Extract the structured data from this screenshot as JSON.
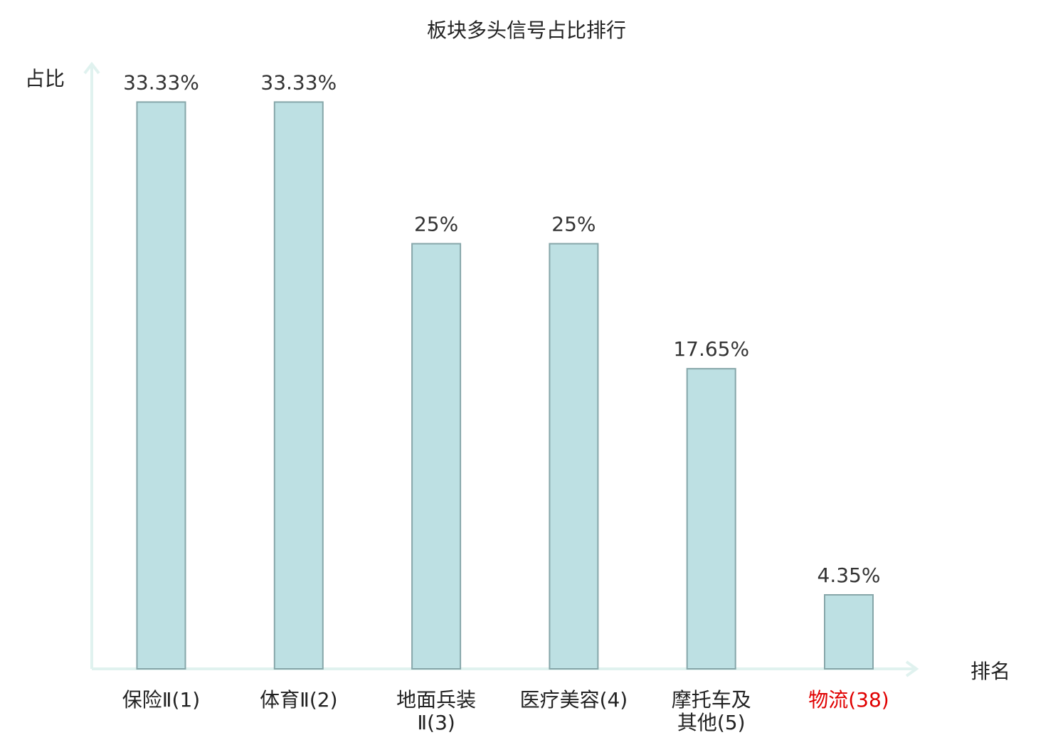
{
  "chart_data": {
    "type": "bar",
    "title": "板块多头信号占比排行",
    "xlabel": "排名",
    "ylabel": "占比",
    "ylim": [
      0,
      35
    ],
    "grid": false,
    "categories": [
      "保险Ⅱ(1)",
      "体育Ⅱ(2)",
      "地面兵装Ⅱ(3)",
      "医疗美容(4)",
      "摩托车及其他(5)",
      "物流(38)"
    ],
    "category_lines": [
      [
        "保险Ⅱ(1)"
      ],
      [
        "体育Ⅱ(2)"
      ],
      [
        "地面兵装",
        "Ⅱ(3)"
      ],
      [
        "医疗美容(4)"
      ],
      [
        "摩托车及",
        "其他(5)"
      ],
      [
        "物流(38)"
      ]
    ],
    "values": [
      33.33,
      33.33,
      25,
      25,
      17.65,
      4.35
    ],
    "value_labels": [
      "33.33%",
      "33.33%",
      "25%",
      "25%",
      "17.65%",
      "4.35%"
    ],
    "highlight_index": 5,
    "colors": {
      "bar_fill": "#bde0e3",
      "bar_stroke": "#86a6a9",
      "axis": "#e0f2ef",
      "text": "#222222",
      "value_text": "#333333",
      "highlight_text": "#e00000"
    }
  }
}
